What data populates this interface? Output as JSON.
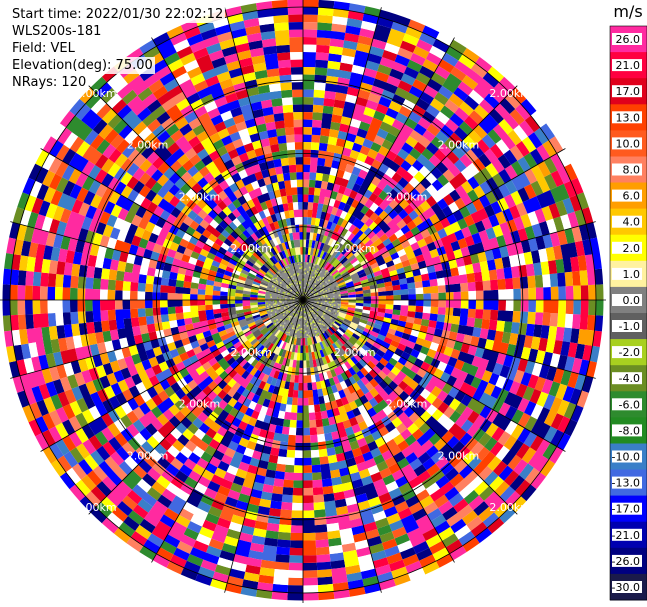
{
  "info": {
    "start_time": "Start time: 2022/01/30 22:02:12",
    "instrument": "WLS200s-181",
    "field": "Field: VEL",
    "elevation": "Elevation(deg): 75.00",
    "nrays": "NRays: 120"
  },
  "chart_data": {
    "type": "heatmap",
    "projection": "polar-ppi",
    "field": "VEL",
    "units": "m/s",
    "nrays": 120,
    "range_rings_km": [
      1.0,
      2.0,
      3.0,
      4.0
    ],
    "ring_label": "2.00km",
    "colorbar": {
      "unit_label": "m/s",
      "ticks": [
        "26.0",
        "21.0",
        "17.0",
        "13.0",
        "10.0",
        "8.0",
        "6.0",
        "4.0",
        "2.0",
        "1.0",
        "0.0",
        "-1.0",
        "-2.0",
        "-4.0",
        "-6.0",
        "-8.0",
        "-10.0",
        "-13.0",
        "-17.0",
        "-21.0",
        "-26.0",
        "-30.0"
      ],
      "colors": [
        "#ff2aa0",
        "#ff0040",
        "#e0001c",
        "#ff4000",
        "#ff5a1e",
        "#ff8060",
        "#ff9e00",
        "#ffc800",
        "#ffff00",
        "#fff2a0",
        "#808080",
        "#606060",
        "#a8d020",
        "#6b8e23",
        "#2e8b2e",
        "#228b22",
        "#3a7fc8",
        "#4169e1",
        "#0000ff",
        "#0000b0",
        "#000080",
        "#1a1a4a"
      ]
    }
  }
}
